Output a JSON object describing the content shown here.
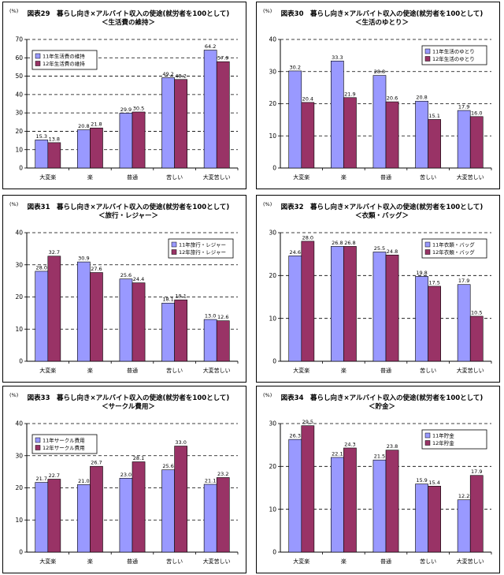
{
  "colors": {
    "series1": "#9999ff",
    "series2": "#993366"
  },
  "charts": [
    {
      "id": "p0",
      "chart_data": {
        "type": "bar",
        "title": "図表29　暮らし向き×アルバイト収入の使途(就労者を100として)",
        "subtitle": "＜生活費の維持＞",
        "unit": "(%)",
        "categories": [
          "大変楽",
          "楽",
          "普通",
          "苦しい",
          "大変苦しい"
        ],
        "series": [
          {
            "name": "11年生活費の維持",
            "values": [
              15.3,
              20.8,
              29.9,
              49.2,
              64.2
            ]
          },
          {
            "name": "12年生活費の維持",
            "values": [
              13.8,
              21.8,
              30.5,
              48.2,
              57.9
            ]
          }
        ],
        "ylim": [
          0,
          70
        ],
        "yticks": [
          0,
          10,
          20,
          30,
          40,
          50,
          60,
          70
        ],
        "grid": true,
        "legend": "top-left"
      }
    },
    {
      "id": "p1",
      "chart_data": {
        "type": "bar",
        "title": "図表30　暮らし向き×アルバイト収入の使途(就労者を100として)",
        "subtitle": "＜生活のゆとり＞",
        "unit": "(%)",
        "categories": [
          "大変楽",
          "楽",
          "普通",
          "苦しい",
          "大変苦しい"
        ],
        "series": [
          {
            "name": "11年生活のゆとり",
            "values": [
              30.2,
              33.3,
              28.8,
              20.8,
              17.9
            ]
          },
          {
            "name": "12年生活のゆとり",
            "values": [
              20.4,
              21.9,
              20.6,
              15.1,
              16.0
            ]
          }
        ],
        "ylim": [
          0,
          40
        ],
        "yticks": [
          0,
          10,
          20,
          30,
          40
        ],
        "grid": true,
        "legend": "top-right"
      }
    },
    {
      "id": "p2",
      "chart_data": {
        "type": "bar",
        "title": "図表31　暮らし向き×アルバイト収入の使途(就労者を100として)",
        "subtitle": "＜旅行・レジャー＞",
        "unit": "(%)",
        "categories": [
          "大変楽",
          "楽",
          "普通",
          "苦しい",
          "大変苦しい"
        ],
        "series": [
          {
            "name": "11年旅行・レジャー",
            "values": [
              28.0,
              30.9,
              25.6,
              18.1,
              13.0
            ]
          },
          {
            "name": "12年旅行・レジャー",
            "values": [
              32.7,
              27.6,
              24.4,
              19.1,
              12.6
            ]
          }
        ],
        "ylim": [
          0,
          40
        ],
        "yticks": [
          0,
          10,
          20,
          30,
          40
        ],
        "grid": true,
        "legend": "top-right"
      }
    },
    {
      "id": "p3",
      "chart_data": {
        "type": "bar",
        "title": "図表32　暮らし向き×アルバイト収入の使途(就労者を100として)",
        "subtitle": "＜衣類・バッグ＞",
        "unit": "(%)",
        "categories": [
          "大変楽",
          "楽",
          "普通",
          "苦しい",
          "大変苦しい"
        ],
        "series": [
          {
            "name": "11年衣類・バッグ",
            "values": [
              24.6,
              26.8,
              25.5,
              19.8,
              17.9
            ]
          },
          {
            "name": "12年衣類・バッグ",
            "values": [
              28.0,
              26.8,
              24.8,
              17.5,
              10.5
            ]
          }
        ],
        "ylim": [
          0,
          30
        ],
        "yticks": [
          0,
          10,
          20,
          30
        ],
        "grid": true,
        "legend": "top-right"
      }
    },
    {
      "id": "p4",
      "chart_data": {
        "type": "bar",
        "title": "図表33　暮らし向き×アルバイト収入の使途(就労者を100として)",
        "subtitle": "＜サークル費用＞",
        "unit": "(%)",
        "categories": [
          "大変楽",
          "楽",
          "普通",
          "苦しい",
          "大変苦しい"
        ],
        "series": [
          {
            "name": "11年サークル費用",
            "values": [
              21.7,
              21.0,
              23.0,
              25.6,
              21.1
            ]
          },
          {
            "name": "12年サークル費用",
            "values": [
              22.7,
              26.7,
              28.1,
              33.0,
              23.2
            ]
          }
        ],
        "ylim": [
          0,
          40
        ],
        "yticks": [
          0,
          10,
          20,
          30,
          40
        ],
        "grid": true,
        "legend": "top-left"
      }
    },
    {
      "id": "p5",
      "chart_data": {
        "type": "bar",
        "title": "図表34　暮らし向き×アルバイト収入の使途(就労者を100として)",
        "subtitle": "＜貯金＞",
        "unit": "(%)",
        "categories": [
          "大変楽",
          "楽",
          "普通",
          "苦しい",
          "大変苦しい"
        ],
        "series": [
          {
            "name": "11年貯金",
            "values": [
              26.3,
              22.1,
              21.5,
              15.9,
              12.2
            ]
          },
          {
            "name": "12年貯金",
            "values": [
              29.5,
              24.3,
              23.8,
              15.4,
              17.9
            ]
          }
        ],
        "ylim": [
          0,
          30
        ],
        "yticks": [
          0,
          10,
          20,
          30
        ],
        "grid": true,
        "legend": "top-right"
      }
    }
  ]
}
